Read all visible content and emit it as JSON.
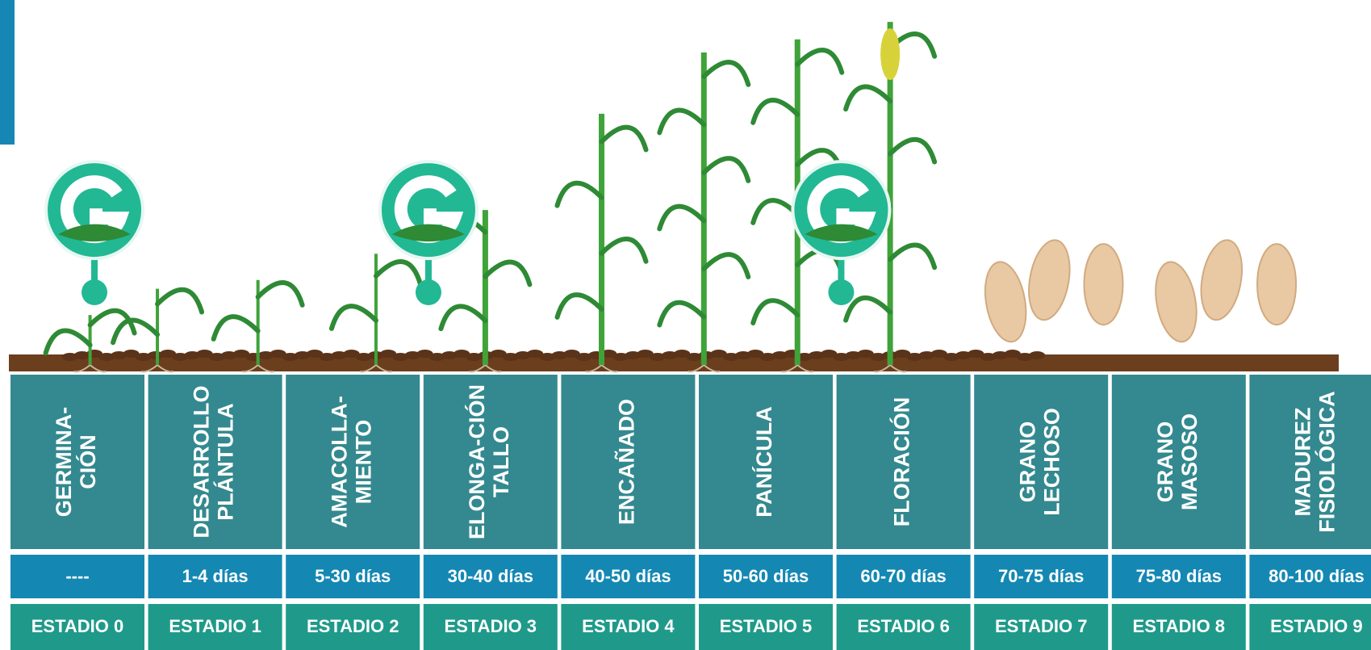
{
  "stages": [
    {
      "name": [
        "GERMINA-",
        "CIÓN"
      ],
      "days": "----",
      "stage": "ESTADIO 0"
    },
    {
      "name": [
        "DESARROLLO",
        "PLÁNTULA"
      ],
      "days": "1-4 días",
      "stage": "ESTADIO 1"
    },
    {
      "name": [
        "AMACOLLA-",
        "MIENTO"
      ],
      "days": "5-30 días",
      "stage": "ESTADIO 2"
    },
    {
      "name": [
        "ELONGA-CIÓN",
        "TALLO"
      ],
      "days": "30-40 días",
      "stage": "ESTADIO 3"
    },
    {
      "name": [
        "ENCAÑADO"
      ],
      "days": "40-50 días",
      "stage": "ESTADIO 4"
    },
    {
      "name": [
        "PANÍCULA"
      ],
      "days": "50-60 días",
      "stage": "ESTADIO 5"
    },
    {
      "name": [
        "FLORACIÓN"
      ],
      "days": "60-70 días",
      "stage": "ESTADIO 6"
    },
    {
      "name": [
        "GRANO",
        "LECHOSO"
      ],
      "days": "70-75 días",
      "stage": "ESTADIO 7"
    },
    {
      "name": [
        "GRANO",
        "MASOSO"
      ],
      "days": "75-80 días",
      "stage": "ESTADIO 8"
    },
    {
      "name": [
        "MADUREZ",
        "FISIOLÓGICA"
      ],
      "days": "80-100 días",
      "stage": "ESTADIO 9"
    }
  ]
}
